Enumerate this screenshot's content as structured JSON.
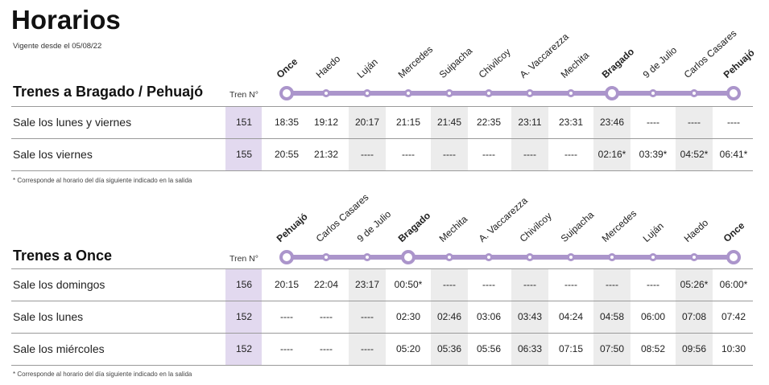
{
  "title": "Horarios",
  "subtitle": "Vigente desde el 05/08/22",
  "sections": [
    {
      "title": "Trenes a Bragado / Pehuajó",
      "tren_label": "Tren N°",
      "stations": [
        {
          "name": "Once",
          "bold": true
        },
        {
          "name": "Haedo",
          "bold": false
        },
        {
          "name": "Luján",
          "bold": false
        },
        {
          "name": "Mercedes",
          "bold": false
        },
        {
          "name": "Suipacha",
          "bold": false
        },
        {
          "name": "Chivilcoy",
          "bold": false
        },
        {
          "name": "A. Vaccarezza",
          "bold": false
        },
        {
          "name": "Mechita",
          "bold": false
        },
        {
          "name": "Bragado",
          "bold": true
        },
        {
          "name": "9 de Julio",
          "bold": false
        },
        {
          "name": "Carlos Casares",
          "bold": false
        },
        {
          "name": "Pehuajó",
          "bold": true
        }
      ],
      "rows": [
        {
          "label": "Sale los lunes y viernes",
          "tren": "151",
          "times": [
            "18:35",
            "19:12",
            "20:17",
            "21:15",
            "21:45",
            "22:35",
            "23:11",
            "23:31",
            "23:46",
            "----",
            "----",
            "----"
          ]
        },
        {
          "label": "Sale los viernes",
          "tren": "155",
          "times": [
            "20:55",
            "21:32",
            "----",
            "----",
            "----",
            "----",
            "----",
            "----",
            "02:16*",
            "03:39*",
            "04:52*",
            "06:41*"
          ]
        }
      ],
      "footnote": "* Corresponde al horario del día siguiente indicado en la salida"
    },
    {
      "title": "Trenes a Once",
      "tren_label": "Tren N°",
      "stations": [
        {
          "name": "Pehuajó",
          "bold": true
        },
        {
          "name": "Carlos Casares",
          "bold": false
        },
        {
          "name": "9 de Julio",
          "bold": false
        },
        {
          "name": "Bragado",
          "bold": true
        },
        {
          "name": "Mechita",
          "bold": false
        },
        {
          "name": "A. Vaccarezza",
          "bold": false
        },
        {
          "name": "Chivilcoy",
          "bold": false
        },
        {
          "name": "Suipacha",
          "bold": false
        },
        {
          "name": "Mercedes",
          "bold": false
        },
        {
          "name": "Luján",
          "bold": false
        },
        {
          "name": "Haedo",
          "bold": false
        },
        {
          "name": "Once",
          "bold": true
        }
      ],
      "rows": [
        {
          "label": "Sale los domingos",
          "tren": "156",
          "times": [
            "20:15",
            "22:04",
            "23:17",
            "00:50*",
            "----",
            "----",
            "----",
            "----",
            "----",
            "----",
            "05:26*",
            "06:00*"
          ]
        },
        {
          "label": "Sale los lunes",
          "tren": "152",
          "times": [
            "----",
            "----",
            "----",
            "02:30",
            "02:46",
            "03:06",
            "03:43",
            "04:24",
            "04:58",
            "06:00",
            "07:08",
            "07:42"
          ]
        },
        {
          "label": "Sale los miércoles",
          "tren": "152",
          "times": [
            "----",
            "----",
            "----",
            "05:20",
            "05:36",
            "05:56",
            "06:33",
            "07:15",
            "07:50",
            "08:52",
            "09:56",
            "10:30"
          ]
        }
      ],
      "footnote": "* Corresponde al horario del día siguiente indicado en la salida"
    }
  ],
  "colors": {
    "line": "#ab95cb",
    "tren_bg": "#e2d9ef",
    "shade": "#ececec"
  }
}
